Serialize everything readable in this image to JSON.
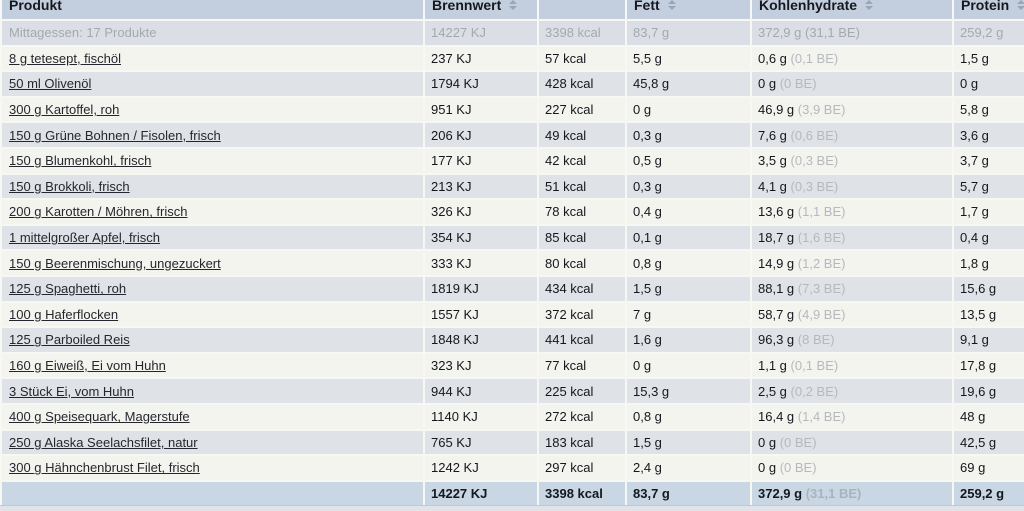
{
  "colors": {
    "header_bg": "#c3cfdf",
    "row_light_bg": "#f4f4ef",
    "row_blue_bg": "#dfe3e8",
    "summary_row_bg": "#dbdfe5",
    "total_row_bg": "#c9d7e5",
    "link_text": "#24272e",
    "muted_text": "#a4a9b0",
    "be_text": "#b5b9be",
    "sort_icon": "#99a6b7"
  },
  "icons": {
    "sort": "sort-up-down-triangles"
  },
  "table": {
    "header": {
      "product": "Produkt",
      "energy": "Brennwert",
      "kcal": "",
      "fat": "Fett",
      "carbs": "Kohlenhydrate",
      "protein": "Protein"
    },
    "summary": {
      "label": "Mittagessen: 17 Produkte",
      "kj": "14227 KJ",
      "kcal": "3398 kcal",
      "fat": "83,7 g",
      "carbs": "372,9 g",
      "carbs_be": "(31,1 BE)",
      "protein": "259,2 g"
    },
    "rows": [
      {
        "name": "8 g tetesept, fischöl",
        "kj": "237 KJ",
        "kcal": "57 kcal",
        "fat": "5,5 g",
        "carbs": "0,6 g",
        "carbs_be": "(0,1 BE)",
        "protein": "1,5 g"
      },
      {
        "name": "50 ml Olivenöl",
        "kj": "1794 KJ",
        "kcal": "428 kcal",
        "fat": "45,8 g",
        "carbs": "0 g",
        "carbs_be": "(0 BE)",
        "protein": "0 g"
      },
      {
        "name": "300 g Kartoffel, roh",
        "kj": "951 KJ",
        "kcal": "227 kcal",
        "fat": "0 g",
        "carbs": "46,9 g",
        "carbs_be": "(3,9 BE)",
        "protein": "5,8 g"
      },
      {
        "name": "150 g Grüne Bohnen / Fisolen, frisch",
        "kj": "206 KJ",
        "kcal": "49 kcal",
        "fat": "0,3 g",
        "carbs": "7,6 g",
        "carbs_be": "(0,6 BE)",
        "protein": "3,6 g"
      },
      {
        "name": "150 g Blumenkohl, frisch",
        "kj": "177 KJ",
        "kcal": "42 kcal",
        "fat": "0,5 g",
        "carbs": "3,5 g",
        "carbs_be": "(0,3 BE)",
        "protein": "3,7 g"
      },
      {
        "name": "150 g Brokkoli, frisch",
        "kj": "213 KJ",
        "kcal": "51 kcal",
        "fat": "0,3 g",
        "carbs": "4,1 g",
        "carbs_be": "(0,3 BE)",
        "protein": "5,7 g"
      },
      {
        "name": "200 g Karotten / Möhren, frisch",
        "kj": "326 KJ",
        "kcal": "78 kcal",
        "fat": "0,4 g",
        "carbs": "13,6 g",
        "carbs_be": "(1,1 BE)",
        "protein": "1,7 g"
      },
      {
        "name": "1 mittelgroßer Apfel, frisch",
        "kj": "354 KJ",
        "kcal": "85 kcal",
        "fat": "0,1 g",
        "carbs": "18,7 g",
        "carbs_be": "(1,6 BE)",
        "protein": "0,4 g"
      },
      {
        "name": "150 g Beerenmischung, ungezuckert",
        "kj": "333 KJ",
        "kcal": "80 kcal",
        "fat": "0,8 g",
        "carbs": "14,9 g",
        "carbs_be": "(1,2 BE)",
        "protein": "1,8 g"
      },
      {
        "name": "125 g Spaghetti, roh",
        "kj": "1819 KJ",
        "kcal": "434 kcal",
        "fat": "1,5 g",
        "carbs": "88,1 g",
        "carbs_be": "(7,3 BE)",
        "protein": "15,6 g"
      },
      {
        "name": "100 g Haferflocken",
        "kj": "1557 KJ",
        "kcal": "372 kcal",
        "fat": "7 g",
        "carbs": "58,7 g",
        "carbs_be": "(4,9 BE)",
        "protein": "13,5 g"
      },
      {
        "name": "125 g Parboiled Reis",
        "kj": "1848 KJ",
        "kcal": "441 kcal",
        "fat": "1,6 g",
        "carbs": "96,3 g",
        "carbs_be": "(8 BE)",
        "protein": "9,1 g"
      },
      {
        "name": "160 g Eiweiß, Ei vom Huhn",
        "kj": "323 KJ",
        "kcal": "77 kcal",
        "fat": "0 g",
        "carbs": "1,1 g",
        "carbs_be": "(0,1 BE)",
        "protein": "17,8 g"
      },
      {
        "name": "3 Stück Ei, vom Huhn",
        "kj": "944 KJ",
        "kcal": "225 kcal",
        "fat": "15,3 g",
        "carbs": "2,5 g",
        "carbs_be": "(0,2 BE)",
        "protein": "19,6 g"
      },
      {
        "name": "400 g Speisequark, Magerstufe",
        "kj": "1140 KJ",
        "kcal": "272 kcal",
        "fat": "0,8 g",
        "carbs": "16,4 g",
        "carbs_be": "(1,4 BE)",
        "protein": "48 g"
      },
      {
        "name": "250 g Alaska Seelachsfilet, natur",
        "kj": "765 KJ",
        "kcal": "183 kcal",
        "fat": "1,5 g",
        "carbs": "0 g",
        "carbs_be": "(0 BE)",
        "protein": "42,5 g"
      },
      {
        "name": "300 g Hähnchenbrust Filet, frisch",
        "kj": "1242 KJ",
        "kcal": "297 kcal",
        "fat": "2,4 g",
        "carbs": "0 g",
        "carbs_be": "(0 BE)",
        "protein": "69 g"
      }
    ],
    "total": {
      "kj": "14227 KJ",
      "kcal": "3398 kcal",
      "fat": "83,7 g",
      "carbs": "372,9 g",
      "carbs_be": "(31,1 BE)",
      "protein": "259,2 g"
    }
  }
}
